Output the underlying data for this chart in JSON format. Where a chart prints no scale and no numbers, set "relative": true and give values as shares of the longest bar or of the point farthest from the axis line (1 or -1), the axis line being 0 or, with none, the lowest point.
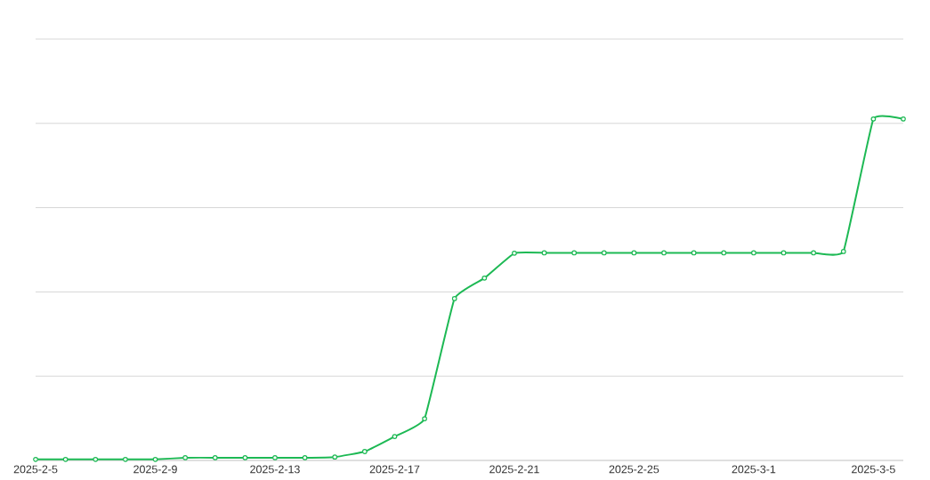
{
  "chart_data": {
    "type": "line",
    "relative": true,
    "color": "#1db954",
    "marker": "circle",
    "grid": "y",
    "x": [
      "2025-02-05",
      "2025-02-06",
      "2025-02-07",
      "2025-02-08",
      "2025-02-09",
      "2025-02-10",
      "2025-02-11",
      "2025-02-12",
      "2025-02-13",
      "2025-02-14",
      "2025-02-15",
      "2025-02-16",
      "2025-02-17",
      "2025-02-18",
      "2025-02-19",
      "2025-02-20",
      "2025-02-21",
      "2025-02-22",
      "2025-02-23",
      "2025-02-24",
      "2025-02-25",
      "2025-02-26",
      "2025-02-27",
      "2025-02-28",
      "2025-03-01",
      "2025-03-02",
      "2025-03-03",
      "2025-03-04",
      "2025-03-05",
      "2025-03-06"
    ],
    "values": [
      0.003,
      0.003,
      0.003,
      0.003,
      0.003,
      0.008,
      0.008,
      0.008,
      0.008,
      0.008,
      0.01,
      0.026,
      0.07,
      0.122,
      0.474,
      0.534,
      0.607,
      0.608,
      0.608,
      0.608,
      0.608,
      0.608,
      0.608,
      0.608,
      0.608,
      0.608,
      0.608,
      0.612,
      1,
      1
    ],
    "xlim": [
      "2025-02-05",
      "2025-03-06"
    ],
    "xticks": [
      {
        "value": "2025-02-05",
        "label": "2025-2-5"
      },
      {
        "value": "2025-02-09",
        "label": "2025-2-9"
      },
      {
        "value": "2025-02-13",
        "label": "2025-2-13"
      },
      {
        "value": "2025-02-17",
        "label": "2025-2-17"
      },
      {
        "value": "2025-02-21",
        "label": "2025-2-21"
      },
      {
        "value": "2025-02-25",
        "label": "2025-2-25"
      },
      {
        "value": "2025-03-01",
        "label": "2025-3-1"
      },
      {
        "value": "2025-03-05",
        "label": "2025-3-5"
      }
    ]
  }
}
